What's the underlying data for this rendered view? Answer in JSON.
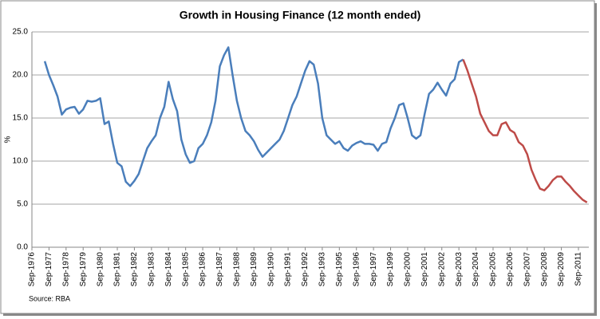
{
  "chart_data": {
    "type": "line",
    "title": "Growth in Housing Finance (12 month ended)",
    "y_label": "%",
    "source": "Source: RBA",
    "categories": [
      "Sep-1976",
      null,
      null,
      null,
      "Sep-1977",
      null,
      null,
      null,
      "Sep-1978",
      null,
      null,
      null,
      "Sep-1979",
      null,
      null,
      null,
      "Sep-1980",
      null,
      null,
      null,
      "Sep-1981",
      null,
      null,
      null,
      "Sep-1982",
      null,
      null,
      null,
      "Sep-1983",
      null,
      null,
      null,
      "Sep-1984",
      null,
      null,
      null,
      "Sep-1985",
      null,
      null,
      null,
      "Sep-1986",
      null,
      null,
      null,
      "Sep-1987",
      null,
      null,
      null,
      "Sep-1988",
      null,
      null,
      null,
      "Sep-1989",
      null,
      null,
      null,
      "Sep-1990",
      null,
      null,
      null,
      "Sep-1991",
      null,
      null,
      null,
      "Sep-1992",
      null,
      null,
      null,
      "Sep-1993",
      null,
      null,
      null,
      "Sep-1995",
      null,
      null,
      null,
      "Sep-1996",
      null,
      null,
      null,
      "Sep-1997",
      null,
      null,
      null,
      "Sep-1999",
      null,
      null,
      null,
      "Sep-2000",
      null,
      null,
      null,
      "Sep-2001",
      null,
      null,
      null,
      "Sep-2002",
      null,
      null,
      null,
      "Sep-2003",
      null,
      null,
      null,
      "Sep-2004",
      null,
      null,
      null,
      "Sep-2005",
      null,
      null,
      null,
      "Sep-2006",
      null,
      null,
      null,
      "Sep-2007",
      null,
      null,
      null,
      "Sep-2008",
      null,
      null,
      null,
      "Sep-2009",
      null,
      null,
      null,
      "Sep-2011",
      null,
      null
    ],
    "series": [
      {
        "color": "#4a7ebb",
        "values": [
          null,
          null,
          null,
          21.6,
          20,
          18.8,
          17.5,
          15.4,
          16,
          16.2,
          16.3,
          15.5,
          16,
          17,
          16.9,
          17,
          17.3,
          14.3,
          14.6,
          12,
          9.8,
          9.4,
          7.6,
          7.1,
          7.7,
          8.5,
          10,
          11.5,
          12.3,
          13,
          15,
          16.3,
          19.2,
          17.2,
          15.8,
          12.5,
          10.8,
          9.8,
          10,
          11.5,
          12,
          13,
          14.5,
          17,
          21,
          22.3,
          23.2,
          20,
          17,
          15,
          13.5,
          13,
          12.3,
          11.3,
          10.5,
          11,
          11.5,
          12,
          12.5,
          13.5,
          15,
          16.5,
          17.5,
          19,
          20.5,
          21.6,
          21.2,
          19,
          15,
          13,
          12.5,
          12,
          12.3,
          11.5,
          11.2,
          11.8,
          12.1,
          12.3,
          12,
          12,
          11.9,
          11.2,
          12,
          12.2,
          13.8,
          15,
          16.5,
          16.7,
          15,
          13,
          12.6,
          13,
          15.5,
          17.8,
          18.3,
          19.1,
          18.3,
          17.6,
          19,
          19.5,
          21.5,
          21.8,
          null,
          null,
          null,
          null,
          null,
          null,
          null,
          null,
          null,
          null,
          null,
          null,
          null,
          null,
          null,
          null,
          null,
          null,
          null,
          null,
          null,
          null,
          null,
          null,
          null,
          null,
          null,
          null,
          null
        ]
      },
      {
        "color": "#be4b48",
        "values": [
          null,
          null,
          null,
          null,
          null,
          null,
          null,
          null,
          null,
          null,
          null,
          null,
          null,
          null,
          null,
          null,
          null,
          null,
          null,
          null,
          null,
          null,
          null,
          null,
          null,
          null,
          null,
          null,
          null,
          null,
          null,
          null,
          null,
          null,
          null,
          null,
          null,
          null,
          null,
          null,
          null,
          null,
          null,
          null,
          null,
          null,
          null,
          null,
          null,
          null,
          null,
          null,
          null,
          null,
          null,
          null,
          null,
          null,
          null,
          null,
          null,
          null,
          null,
          null,
          null,
          null,
          null,
          null,
          null,
          null,
          null,
          null,
          null,
          null,
          null,
          null,
          null,
          null,
          null,
          null,
          null,
          null,
          null,
          null,
          null,
          null,
          null,
          null,
          null,
          null,
          null,
          null,
          null,
          null,
          null,
          null,
          null,
          null,
          null,
          null,
          null,
          21.8,
          20.5,
          19,
          17.5,
          15.5,
          14.5,
          13.5,
          13,
          13,
          14.3,
          14.5,
          13.6,
          13.3,
          12.2,
          11.8,
          10.8,
          9,
          7.8,
          6.8,
          6.6,
          7.1,
          7.8,
          8.2,
          8.2,
          7.6,
          7.1,
          6.5,
          6,
          5.5,
          5.2
        ]
      }
    ],
    "ylim": [
      0,
      25
    ],
    "yticks": [
      {
        "value": 0,
        "label": "0.0"
      },
      {
        "value": 5,
        "label": "5.0"
      },
      {
        "value": 10,
        "label": "10.0"
      },
      {
        "value": 15,
        "label": "15.0"
      },
      {
        "value": 20,
        "label": "20.0"
      },
      {
        "value": 25,
        "label": "25.0"
      }
    ],
    "grid": true
  }
}
